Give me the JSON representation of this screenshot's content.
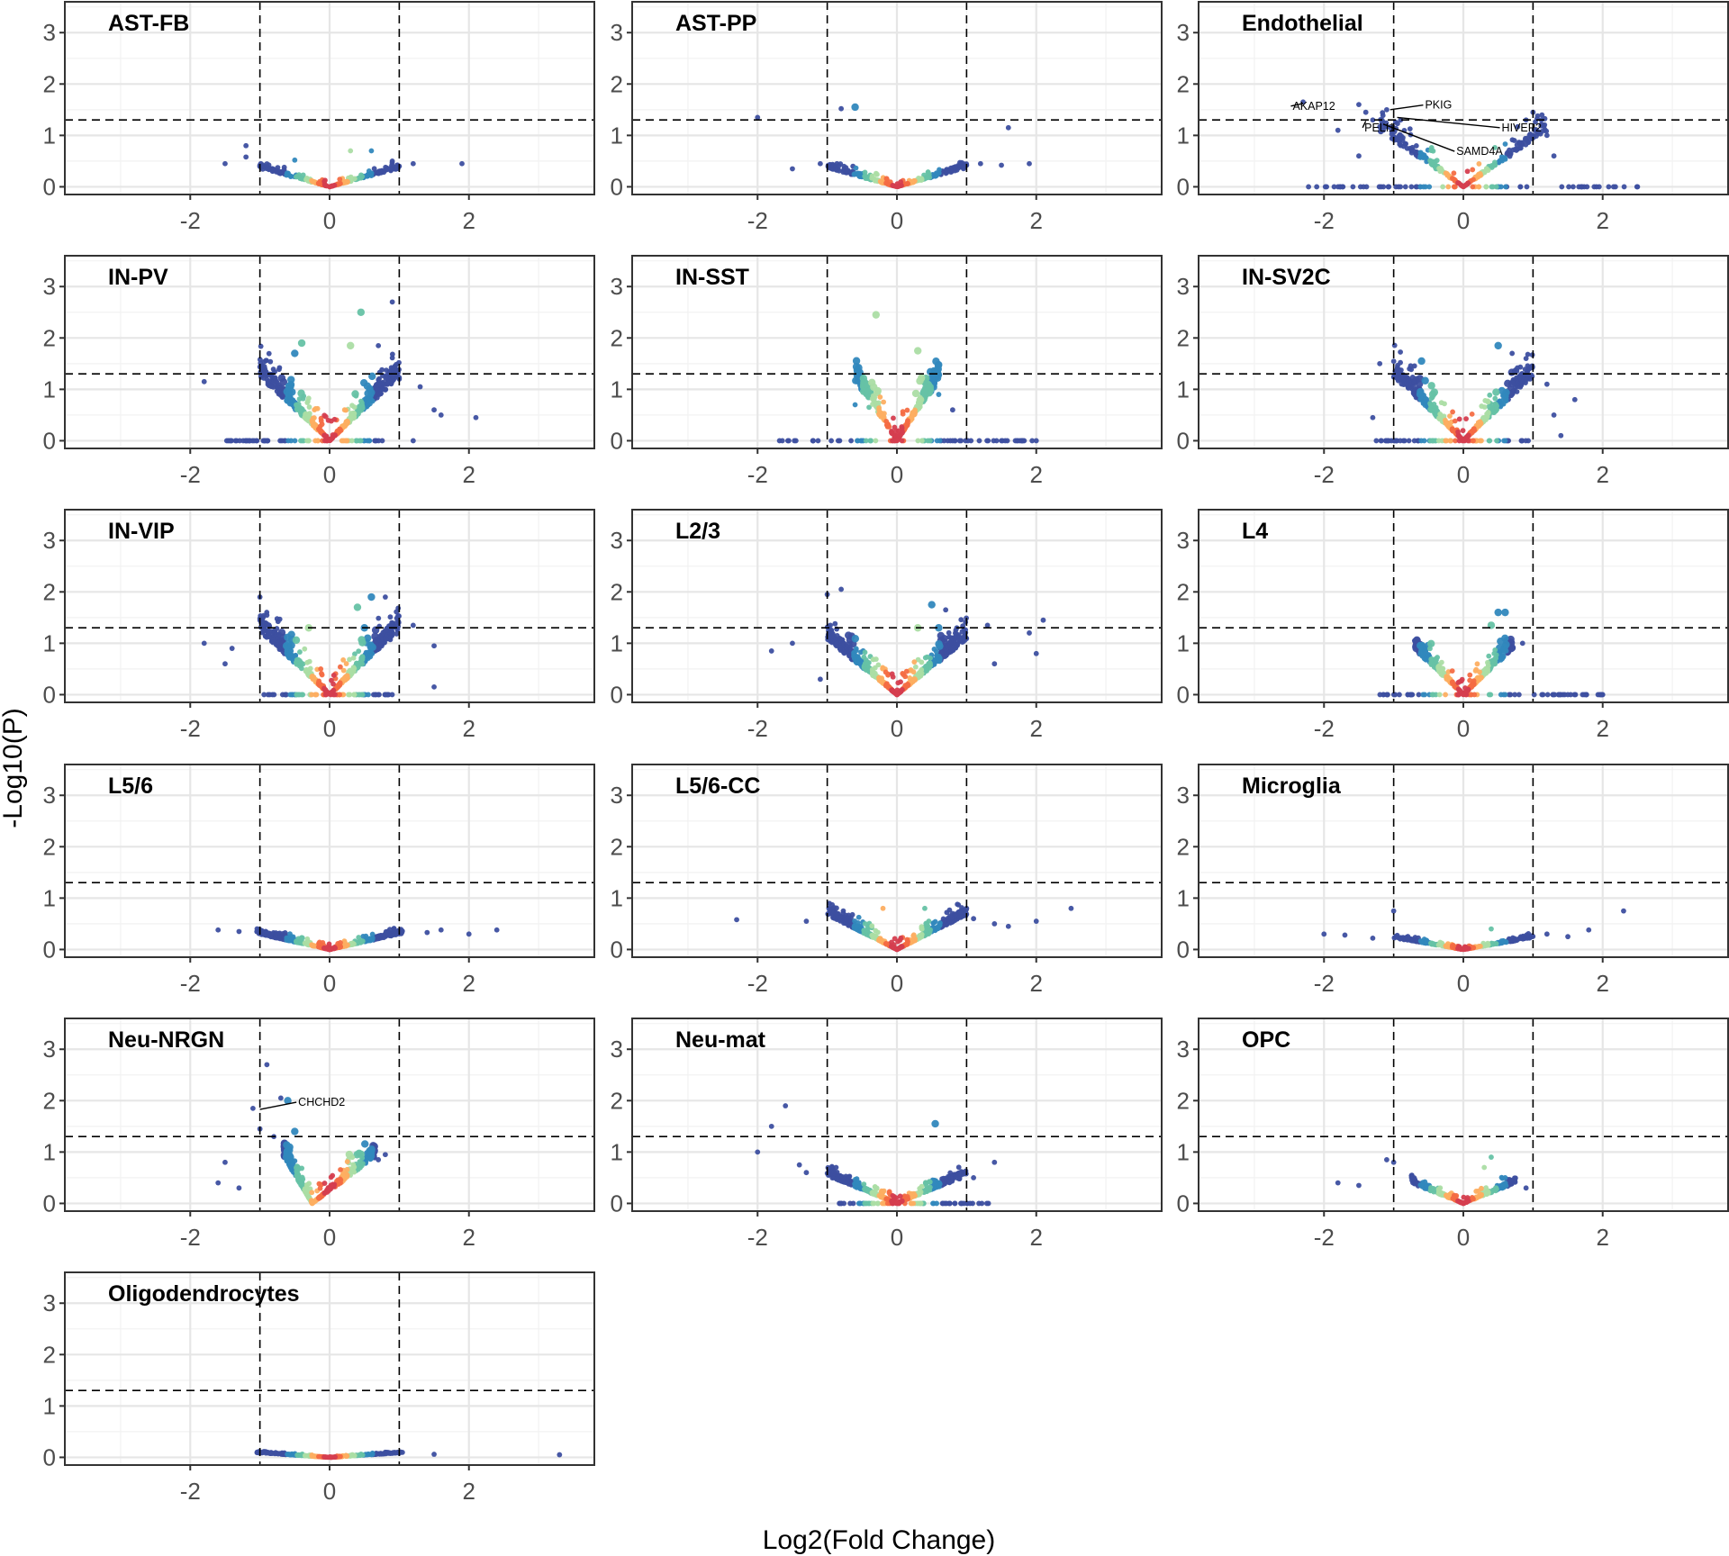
{
  "chart_data": {
    "type": "scatter",
    "xlabel": "Log2(Fold Change)",
    "ylabel": "-Log10(P)",
    "xlim": [
      -3.8,
      3.8
    ],
    "ylim": [
      -0.15,
      3.6
    ],
    "x_ticks": [
      "-2",
      "0",
      "2"
    ],
    "x_tick_values": [
      -2,
      0,
      2
    ],
    "y_ticks": [
      "0",
      "1",
      "2",
      "3"
    ],
    "y_tick_values": [
      0,
      1,
      2,
      3
    ],
    "grid": true,
    "thresholds": {
      "log2fc": [
        -1,
        1
      ],
      "neg_log10_p": 1.301
    },
    "facet_columns": 3,
    "color_palette": [
      "#3d4fa0",
      "#3288bd",
      "#66c2a5",
      "#abdda4",
      "#fdae61",
      "#f46d43",
      "#d53e4f",
      "#9e0142"
    ],
    "panels": [
      {
        "title": "AST-FB",
        "wx": 1.0,
        "h": 0.35,
        "off": 0.05,
        "n": 240,
        "ymax": 0.5,
        "extras": [
          [
            -1.5,
            0.45
          ],
          [
            -1.2,
            0.58
          ],
          [
            -1.0,
            0.42
          ],
          [
            -0.9,
            0.38
          ],
          [
            -0.5,
            0.52
          ],
          [
            0.3,
            0.7
          ],
          [
            0.6,
            0.7
          ],
          [
            0.9,
            0.5
          ],
          [
            1.0,
            0.4
          ],
          [
            1.2,
            0.45
          ],
          [
            1.9,
            0.45
          ],
          [
            -1.2,
            0.8
          ]
        ],
        "labels": []
      },
      {
        "title": "AST-PP",
        "wx": 1.0,
        "h": 0.42,
        "off": 0.0,
        "n": 260,
        "ymax": 0.5,
        "extras": [
          [
            -2.0,
            1.35
          ],
          [
            -0.8,
            1.52
          ],
          [
            -0.6,
            1.55
          ],
          [
            1.6,
            1.15
          ],
          [
            -1.5,
            0.35
          ],
          [
            1.0,
            0.42
          ],
          [
            1.5,
            0.42
          ],
          [
            1.9,
            0.45
          ],
          [
            -1.1,
            0.45
          ],
          [
            1.2,
            0.45
          ]
        ],
        "labels": []
      },
      {
        "title": "Endothelial",
        "wx": 1.2,
        "h": 1.1,
        "off": 0.1,
        "n": 260,
        "ymax": 1.6,
        "zero": true,
        "zeroRange": [
          -2.4,
          2.5
        ],
        "extras": [
          [
            -2.3,
            1.65
          ],
          [
            -1.5,
            1.6
          ],
          [
            -1.4,
            1.45
          ],
          [
            -1.1,
            1.5
          ],
          [
            -0.9,
            1.3
          ],
          [
            0.9,
            1.3
          ],
          [
            1.0,
            1.45
          ],
          [
            1.2,
            1.0
          ],
          [
            -1.8,
            1.1
          ],
          [
            -1.5,
            0.6
          ],
          [
            -1.3,
            1.3
          ],
          [
            1.3,
            0.6
          ],
          [
            2.5,
            0.0
          ]
        ],
        "labels": [
          {
            "text": "AKAP12",
            "px": -2.3,
            "py": 1.62,
            "tx": -2.45,
            "ty": 1.5
          },
          {
            "text": "PKIG",
            "px": -1.05,
            "py": 1.5,
            "tx": -0.55,
            "ty": 1.52
          },
          {
            "text": "HIVEP2",
            "px": -0.95,
            "py": 1.35,
            "tx": 0.55,
            "ty": 1.08
          },
          {
            "text": "PELI1",
            "px": -1.4,
            "py": 1.28,
            "tx": -1.42,
            "ty": 1.08
          },
          {
            "text": "SAMD4A",
            "px": -1.15,
            "py": 1.22,
            "tx": -0.1,
            "ty": 0.62
          }
        ]
      },
      {
        "title": "IN-PV",
        "wx": 1.0,
        "h": 1.4,
        "off": 0.0,
        "n": 520,
        "ymax": 2.7,
        "zero": true,
        "zeroRange": [
          -1.5,
          0.85
        ],
        "extras": [
          [
            -1.8,
            1.15
          ],
          [
            -0.4,
            1.9
          ],
          [
            -0.5,
            1.7
          ],
          [
            0.3,
            1.85
          ],
          [
            0.45,
            2.5
          ],
          [
            0.7,
            1.85
          ],
          [
            0.9,
            2.7
          ],
          [
            1.0,
            1.2
          ],
          [
            1.3,
            1.05
          ],
          [
            1.5,
            0.6
          ],
          [
            2.1,
            0.45
          ],
          [
            1.6,
            0.5
          ],
          [
            1.2,
            0.0
          ]
        ],
        "labels": []
      },
      {
        "title": "IN-SST",
        "wx": 0.6,
        "h": 1.35,
        "off": 0.0,
        "n": 260,
        "ymax": 2.5,
        "zero": true,
        "zeroRange": [
          -1.7,
          2.0
        ],
        "extras": [
          [
            -0.3,
            2.45
          ],
          [
            0.3,
            1.75
          ],
          [
            -0.6,
            0.7
          ],
          [
            -0.4,
            0.65
          ],
          [
            0.6,
            0.9
          ],
          [
            0.8,
            0.6
          ],
          [
            0.9,
            0.0
          ],
          [
            1.5,
            0.0
          ],
          [
            1.7,
            0.0
          ],
          [
            2.0,
            0.0
          ]
        ],
        "labels": []
      },
      {
        "title": "IN-SV2C",
        "wx": 1.0,
        "h": 1.3,
        "off": 0.1,
        "n": 520,
        "ymax": 1.9,
        "zero": true,
        "zeroRange": [
          -1.3,
          0.95
        ],
        "extras": [
          [
            -1.2,
            1.5
          ],
          [
            -0.6,
            1.55
          ],
          [
            0.5,
            1.85
          ],
          [
            0.7,
            1.7
          ],
          [
            0.9,
            1.6
          ],
          [
            1.2,
            1.1
          ],
          [
            1.6,
            0.8
          ],
          [
            1.3,
            0.5
          ],
          [
            1.4,
            0.1
          ],
          [
            -1.3,
            0.45
          ]
        ],
        "labels": []
      },
      {
        "title": "IN-VIP",
        "wx": 1.0,
        "h": 1.4,
        "off": 0.0,
        "n": 500,
        "ymax": 1.95,
        "zero": true,
        "zeroRange": [
          -1.0,
          0.9
        ],
        "extras": [
          [
            -1.8,
            1.0
          ],
          [
            -1.4,
            0.9
          ],
          [
            -1.5,
            0.6
          ],
          [
            -1.0,
            1.9
          ],
          [
            0.4,
            1.7
          ],
          [
            0.6,
            1.9
          ],
          [
            0.8,
            1.9
          ],
          [
            1.2,
            1.35
          ],
          [
            1.5,
            0.95
          ],
          [
            1.5,
            0.15
          ],
          [
            -0.3,
            1.3
          ],
          [
            0.5,
            1.3
          ]
        ],
        "labels": []
      },
      {
        "title": "L2/3",
        "wx": 1.0,
        "h": 1.1,
        "off": 0.1,
        "n": 620,
        "ymax": 2.1,
        "zero": false,
        "extras": [
          [
            -1.0,
            1.95
          ],
          [
            -0.8,
            2.05
          ],
          [
            -1.5,
            1.0
          ],
          [
            -1.8,
            0.85
          ],
          [
            -1.1,
            0.3
          ],
          [
            0.5,
            1.75
          ],
          [
            0.7,
            1.65
          ],
          [
            1.3,
            1.35
          ],
          [
            1.9,
            1.2
          ],
          [
            2.1,
            1.45
          ],
          [
            2.0,
            0.8
          ],
          [
            1.4,
            0.6
          ],
          [
            0.3,
            1.3
          ],
          [
            0.6,
            1.3
          ]
        ],
        "labels": []
      },
      {
        "title": "L4",
        "wx": 0.7,
        "h": 1.0,
        "off": 0.0,
        "n": 360,
        "ymax": 1.65,
        "zero": true,
        "zeroRange": [
          -1.2,
          2.0
        ],
        "extras": [
          [
            0.5,
            1.6
          ],
          [
            0.6,
            1.6
          ],
          [
            0.4,
            1.35
          ],
          [
            -0.7,
            1.05
          ],
          [
            0.85,
            1.0
          ],
          [
            1.5,
            0.0
          ],
          [
            2.0,
            0.0
          ],
          [
            -1.1,
            0.0
          ]
        ],
        "labels": []
      },
      {
        "title": "L5/6",
        "wx": 1.05,
        "h": 0.35,
        "off": 0.0,
        "n": 480,
        "ymax": 0.5,
        "zero": false,
        "extras": [
          [
            -1.6,
            0.38
          ],
          [
            -1.3,
            0.35
          ],
          [
            1.4,
            0.33
          ],
          [
            1.6,
            0.38
          ],
          [
            2.0,
            0.3
          ],
          [
            2.4,
            0.38
          ]
        ],
        "labels": []
      },
      {
        "title": "L5/6-CC",
        "wx": 1.0,
        "h": 0.65,
        "off": 0.1,
        "n": 560,
        "ymax": 1.0,
        "zero": false,
        "extras": [
          [
            -2.3,
            0.58
          ],
          [
            -1.3,
            0.55
          ],
          [
            1.0,
            0.8
          ],
          [
            1.1,
            0.6
          ],
          [
            1.4,
            0.5
          ],
          [
            1.6,
            0.45
          ],
          [
            2.0,
            0.55
          ],
          [
            2.5,
            0.8
          ],
          [
            -0.2,
            0.8
          ],
          [
            0.4,
            0.8
          ]
        ],
        "labels": []
      },
      {
        "title": "Microglia",
        "wx": 1.0,
        "h": 0.2,
        "off": 0.05,
        "n": 280,
        "ymax": 0.35,
        "zero": false,
        "extras": [
          [
            -2.0,
            0.3
          ],
          [
            -1.7,
            0.28
          ],
          [
            -1.0,
            0.75
          ],
          [
            1.2,
            0.3
          ],
          [
            1.5,
            0.25
          ],
          [
            1.8,
            0.38
          ],
          [
            2.3,
            0.75
          ],
          [
            0.4,
            0.4
          ],
          [
            -1.3,
            0.22
          ]
        ],
        "labels": []
      },
      {
        "title": "Neu-NRGN",
        "wx": 0.65,
        "h": 1.0,
        "off": 0.0,
        "n": 360,
        "ymax": 1.2,
        "zero": false,
        "shiftX": -0.25,
        "extras": [
          [
            -0.9,
            2.7
          ],
          [
            -0.7,
            2.05
          ],
          [
            -0.6,
            2.0
          ],
          [
            -1.1,
            1.85
          ],
          [
            -1.5,
            0.8
          ],
          [
            -1.6,
            0.4
          ],
          [
            -1.3,
            0.3
          ],
          [
            -1.0,
            1.45
          ],
          [
            -0.5,
            1.4
          ],
          [
            -0.8,
            1.3
          ],
          [
            0.7,
            0.85
          ],
          [
            0.8,
            0.95
          ]
        ],
        "labels": [
          {
            "text": "CHCHD2",
            "px": -1.0,
            "py": 1.83,
            "tx": -0.45,
            "ty": 1.9
          }
        ]
      },
      {
        "title": "Neu-mat",
        "wx": 1.0,
        "h": 0.55,
        "off": 0.05,
        "n": 440,
        "ymax": 0.9,
        "zero": true,
        "zeroRange": [
          -0.9,
          1.35
        ],
        "extras": [
          [
            -1.6,
            1.9
          ],
          [
            -1.8,
            1.5
          ],
          [
            -2.0,
            1.0
          ],
          [
            -1.4,
            0.75
          ],
          [
            0.55,
            1.55
          ],
          [
            1.4,
            0.8
          ],
          [
            1.1,
            0.5
          ],
          [
            -1.3,
            0.6
          ]
        ],
        "labels": []
      },
      {
        "title": "OPC",
        "wx": 0.75,
        "h": 0.45,
        "off": 0.0,
        "n": 260,
        "ymax": 0.9,
        "zero": false,
        "extras": [
          [
            -1.1,
            0.85
          ],
          [
            -1.0,
            0.8
          ],
          [
            -1.8,
            0.4
          ],
          [
            -1.5,
            0.35
          ],
          [
            0.3,
            0.7
          ],
          [
            0.4,
            0.9
          ],
          [
            0.9,
            0.3
          ],
          [
            0.6,
            0.5
          ]
        ],
        "labels": []
      },
      {
        "title": "Oligodendrocytes",
        "wx": 1.05,
        "h": 0.08,
        "off": 0.02,
        "n": 260,
        "ymax": 0.15,
        "zero": false,
        "extras": [
          [
            1.0,
            0.08
          ],
          [
            1.5,
            0.06
          ],
          [
            3.3,
            0.05
          ],
          [
            -0.9,
            0.1
          ],
          [
            0.8,
            0.1
          ]
        ],
        "labels": []
      }
    ]
  }
}
